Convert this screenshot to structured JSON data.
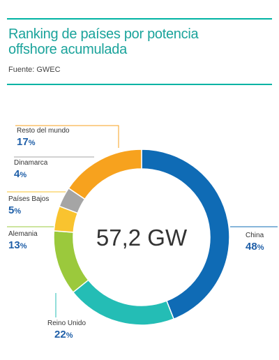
{
  "header": {
    "title_line1": "Ranking de países por potencia",
    "title_line2": "offshore acumulada",
    "source": "Fuente: GWEC"
  },
  "colors": {
    "accent": "#00b3a4",
    "title": "#1aa39b",
    "label_value": "#1f5fa8",
    "leader": "#cccccc"
  },
  "chart_data": {
    "type": "pie",
    "variant": "donut",
    "title": "Ranking de países por potencia offshore acumulada",
    "center_label": "57,2 GW",
    "slices": [
      {
        "name": "China",
        "value": 48,
        "pct_text": "48",
        "color": "#0f6bb5"
      },
      {
        "name": "Reino Unido",
        "value": 22,
        "pct_text": "22",
        "color": "#24bdb5"
      },
      {
        "name": "Alemania",
        "value": 13,
        "pct_text": "13",
        "color": "#9bc93c"
      },
      {
        "name": "Países Bajos",
        "value": 5,
        "pct_text": "5",
        "color": "#f9c32f"
      },
      {
        "name": "Dinamarca",
        "value": 4,
        "pct_text": "4",
        "color": "#a5a5a5"
      },
      {
        "name": "Resto del mundo",
        "value": 17,
        "pct_text": "17",
        "color": "#f7a21e"
      }
    ],
    "start_angle_deg": 0,
    "legend": "outside, callout lines",
    "pct_suffix": "%"
  }
}
